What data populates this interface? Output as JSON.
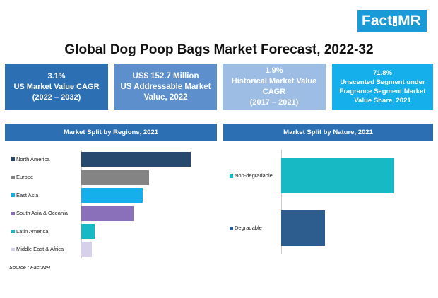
{
  "logo": {
    "left": "Fact",
    "dot": ".",
    "right": "MR"
  },
  "title": "Global Dog Poop Bags Market Forecast, 2022-32",
  "kpis": [
    {
      "line1": "3.1%",
      "line2": "US Market Value CAGR",
      "line3": "(2022 – 2032)"
    },
    {
      "line1": "US$ 152.7 Million",
      "line2": "US Addressable  Market",
      "line3": "Value,  2022"
    },
    {
      "line1": "1.9%",
      "line2": "Historical  Market  Value",
      "line3": "CAGR",
      "line4": "(2017 – 2021)"
    },
    {
      "line1": "71.8%",
      "line2": "Unscented Segment under",
      "line3": "Fragrance Segment Market",
      "line4": "Value Share, 2021"
    }
  ],
  "colors": {
    "dark_blue": "#2c6fb2",
    "teal": "#16b9c4",
    "purple": "#8a6fba",
    "navy": "#27496d",
    "steel": "#2d5c8e",
    "gray": "#848484",
    "lavender": "#d6d0ea",
    "cyan": "#15b0ec"
  },
  "chart_data": [
    {
      "type": "bar",
      "orientation": "horizontal",
      "title": "Market Split by Regions, 2021",
      "categories": [
        "North America",
        "Europe",
        "East Asia",
        "South Asia & Oceania",
        "Latin America",
        "Middle East & Africa"
      ],
      "values": [
        36.5,
        22.5,
        20.5,
        17.5,
        4.5,
        3.5
      ],
      "colors": [
        "#27496d",
        "#848484",
        "#15b0ec",
        "#8a6fba",
        "#16b9c4",
        "#d6d0ea"
      ],
      "grid": false,
      "legend": "none"
    },
    {
      "type": "bar",
      "orientation": "horizontal",
      "title": "Market Split by Nature, 2021",
      "categories": [
        "Non-degradable",
        "Degradable"
      ],
      "values": [
        72,
        28
      ],
      "colors": [
        "#16b9c4",
        "#2d5c8e"
      ],
      "grid": false,
      "legend": "none"
    }
  ],
  "source": "Source : Fact.MR"
}
